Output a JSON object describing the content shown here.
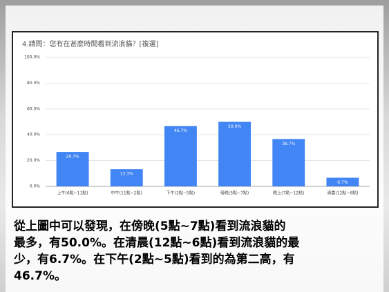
{
  "chart_data": {
    "type": "bar",
    "title": "4.請問：您有在甚麼時間看到流浪貓？[複選]",
    "categories": [
      "上午(6點~11點)",
      "中午(11點~2點)",
      "下午(2點~5點)",
      "傍晚(5點~7點)",
      "晚上(7點~12點)",
      "清晨(12點~6點)"
    ],
    "values": [
      26.7,
      13.3,
      46.7,
      50.0,
      36.7,
      6.7
    ],
    "value_labels": [
      "26.7%",
      "13.3%",
      "46.7%",
      "50.0%",
      "36.7%",
      "6.7%"
    ],
    "color": "#4285f4",
    "ylim": [
      0,
      100
    ],
    "yticks": [
      {
        "value": 0,
        "label": "0.0%"
      },
      {
        "value": 20,
        "label": "20.0%"
      },
      {
        "value": 40,
        "label": "40.0%"
      },
      {
        "value": 60,
        "label": "60.0%"
      },
      {
        "value": 80,
        "label": "80.0%"
      },
      {
        "value": 100,
        "label": "100.0%"
      }
    ],
    "grid": true
  },
  "caption": [
    "從上圖中可以發現，在傍晚(5點~7點)看到流浪貓的",
    "最多，有50.0%。在清晨(12點~6點)看到流浪貓的最",
    "少，有6.7%。在下午(2點~5點)看到的為第二高，有",
    "46.7%。"
  ]
}
